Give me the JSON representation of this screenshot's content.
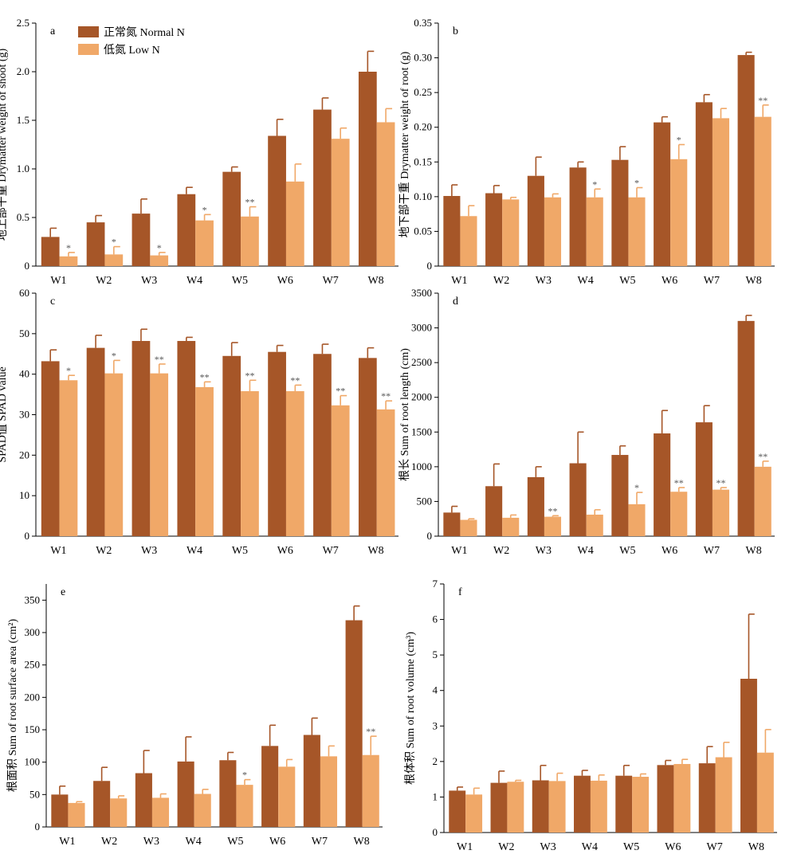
{
  "legend": {
    "normal_label": "正常氮 Normal N",
    "low_label": "低氮 Low N"
  },
  "colors": {
    "normal": "#A65628",
    "low": "#F0A868"
  },
  "chart_data": [
    {
      "panel": "a",
      "type": "bar",
      "ylabel": "地上部干重 Drymatter weight of shoot (g)",
      "ylim": [
        0,
        2.5
      ],
      "yticks": [
        "0",
        "0.5",
        "1.0",
        "1.5",
        "2.0",
        "2.5"
      ],
      "categories": [
        "W1",
        "W2",
        "W3",
        "W4",
        "W5",
        "W6",
        "W7",
        "W8"
      ],
      "legend_position": "top-left",
      "series": [
        {
          "name": "正常氮 Normal N",
          "values": [
            0.3,
            0.45,
            0.54,
            0.74,
            0.97,
            1.34,
            1.61,
            2.0
          ],
          "errors": [
            0.09,
            0.07,
            0.15,
            0.07,
            0.05,
            0.17,
            0.12,
            0.21
          ]
        },
        {
          "name": "低氮 Low N",
          "values": [
            0.1,
            0.12,
            0.11,
            0.47,
            0.51,
            0.87,
            1.31,
            1.48
          ],
          "errors": [
            0.04,
            0.08,
            0.03,
            0.06,
            0.1,
            0.18,
            0.11,
            0.14
          ]
        }
      ],
      "significance": [
        "*",
        "*",
        "*",
        "*",
        "**",
        "",
        "",
        ""
      ]
    },
    {
      "panel": "b",
      "type": "bar",
      "ylabel": "地下部干重 Drymatter weight of root (g)",
      "ylim": [
        0,
        0.35
      ],
      "yticks": [
        "0",
        "0.05",
        "0.10",
        "0.15",
        "0.20",
        "0.25",
        "0.30",
        "0.35"
      ],
      "categories": [
        "W1",
        "W2",
        "W3",
        "W4",
        "W5",
        "W6",
        "W7",
        "W8"
      ],
      "series": [
        {
          "name": "正常氮 Normal N",
          "values": [
            0.101,
            0.105,
            0.13,
            0.142,
            0.153,
            0.207,
            0.236,
            0.304
          ],
          "errors": [
            0.016,
            0.011,
            0.027,
            0.008,
            0.019,
            0.008,
            0.011,
            0.004
          ]
        },
        {
          "name": "低氮 Low N",
          "values": [
            0.072,
            0.096,
            0.099,
            0.099,
            0.099,
            0.154,
            0.213,
            0.215
          ],
          "errors": [
            0.015,
            0.003,
            0.005,
            0.012,
            0.014,
            0.021,
            0.014,
            0.017
          ]
        }
      ],
      "significance": [
        "",
        "",
        "",
        "*",
        "*",
        "*",
        "",
        "**"
      ]
    },
    {
      "panel": "c",
      "type": "bar",
      "ylabel": "SPAD值 SPAD value",
      "ylim": [
        0,
        60
      ],
      "yticks": [
        "0",
        "10",
        "20",
        "30",
        "40",
        "50",
        "60"
      ],
      "categories": [
        "W1",
        "W2",
        "W3",
        "W4",
        "W5",
        "W6",
        "W7",
        "W8"
      ],
      "series": [
        {
          "name": "正常氮 Normal N",
          "values": [
            43.2,
            46.5,
            48.2,
            48.2,
            44.5,
            45.5,
            45.0,
            44.0
          ],
          "errors": [
            2.8,
            3.1,
            2.9,
            0.9,
            3.3,
            1.6,
            2.4,
            2.5
          ]
        },
        {
          "name": "低氮 Low N",
          "values": [
            38.5,
            40.2,
            40.2,
            36.8,
            35.8,
            35.8,
            32.3,
            31.3
          ],
          "errors": [
            1.2,
            3.2,
            2.3,
            1.3,
            2.7,
            1.5,
            2.4,
            2.1
          ]
        }
      ],
      "significance": [
        "*",
        "*",
        "**",
        "**",
        "**",
        "**",
        "**",
        "**"
      ]
    },
    {
      "panel": "d",
      "type": "bar",
      "ylabel": "根长 Sum of root length (cm)",
      "ylim": [
        0,
        3500
      ],
      "yticks": [
        "0",
        "500",
        "1000",
        "1500",
        "2000",
        "2500",
        "3000",
        "3500"
      ],
      "categories": [
        "W1",
        "W2",
        "W3",
        "W4",
        "W5",
        "W6",
        "W7",
        "W8"
      ],
      "series": [
        {
          "name": "正常氮 Normal N",
          "values": [
            340,
            720,
            850,
            1050,
            1170,
            1480,
            1640,
            3100
          ],
          "errors": [
            90,
            320,
            150,
            450,
            130,
            330,
            240,
            80
          ]
        },
        {
          "name": "低氮 Low N",
          "values": [
            235,
            265,
            280,
            310,
            460,
            640,
            670,
            1000
          ],
          "errors": [
            15,
            40,
            15,
            70,
            170,
            60,
            30,
            80
          ]
        }
      ],
      "significance": [
        "",
        "",
        "**",
        "",
        "*",
        "**",
        "**",
        "**"
      ]
    },
    {
      "panel": "e",
      "type": "bar",
      "ylabel": "根面积 Sum of root surface area (cm²)",
      "ylim": [
        0,
        375
      ],
      "yticks": [
        "0",
        "50",
        "100",
        "150",
        "200",
        "250",
        "300",
        "350"
      ],
      "categories": [
        "W1",
        "W2",
        "W3",
        "W4",
        "W5",
        "W6",
        "W7",
        "W8"
      ],
      "series": [
        {
          "name": "正常氮 Normal N",
          "values": [
            50,
            71,
            83,
            101,
            103,
            125,
            142,
            319
          ],
          "errors": [
            13,
            21,
            35,
            38,
            12,
            32,
            26,
            22
          ]
        },
        {
          "name": "低氮 Low N",
          "values": [
            37,
            44,
            45,
            51,
            65,
            93,
            109,
            111
          ],
          "errors": [
            2,
            4,
            6,
            7,
            8,
            11,
            16,
            29
          ]
        }
      ],
      "significance": [
        "",
        "",
        "",
        "",
        "*",
        "",
        "",
        "**"
      ]
    },
    {
      "panel": "f",
      "type": "bar",
      "ylabel": "根体积 Sum of root volume (cm³)",
      "ylim": [
        0,
        7
      ],
      "yticks": [
        "0",
        "1",
        "2",
        "3",
        "4",
        "5",
        "6",
        "7"
      ],
      "categories": [
        "W1",
        "W2",
        "W3",
        "W4",
        "W5",
        "W6",
        "W7",
        "W8"
      ],
      "series": [
        {
          "name": "正常氮 Normal N",
          "values": [
            1.18,
            1.4,
            1.47,
            1.6,
            1.6,
            1.9,
            1.95,
            4.33
          ],
          "errors": [
            0.1,
            0.33,
            0.42,
            0.15,
            0.29,
            0.13,
            0.47,
            1.82
          ]
        },
        {
          "name": "低氮 Low N",
          "values": [
            1.07,
            1.43,
            1.45,
            1.46,
            1.57,
            1.93,
            2.12,
            2.25
          ],
          "errors": [
            0.18,
            0.04,
            0.22,
            0.16,
            0.08,
            0.13,
            0.42,
            0.65
          ]
        }
      ],
      "significance": [
        "",
        "",
        "",
        "",
        "",
        "",
        "",
        ""
      ]
    }
  ]
}
